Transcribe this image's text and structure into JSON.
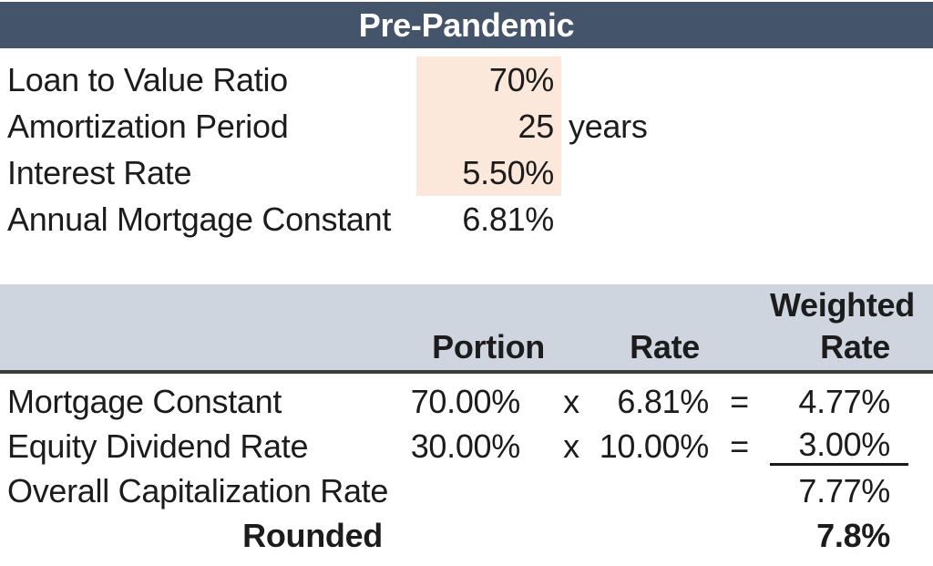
{
  "title": "Pre-Pandemic",
  "colors": {
    "title_bg": "#44546A",
    "title_text": "#FFFFFF",
    "input_highlight_bg": "#FBE8DB",
    "table_header_bg": "#CED5DE",
    "text": "#1C1C1C",
    "header_border": "#3B3B3B"
  },
  "assumptions": {
    "rows": [
      {
        "label": "Loan to Value Ratio",
        "value": "70%",
        "suffix": ""
      },
      {
        "label": "Amortization Period",
        "value": "25",
        "suffix": "years"
      },
      {
        "label": "Interest Rate",
        "value": "5.50%",
        "suffix": ""
      },
      {
        "label": "Annual Mortgage Constant",
        "value": "6.81%",
        "suffix": ""
      }
    ]
  },
  "weighted_table": {
    "col_headers": {
      "portion": "Portion",
      "rate": "Rate",
      "weighted_line1": "Weighted",
      "weighted_line2": "Rate"
    },
    "rows": [
      {
        "label": "Mortgage Constant",
        "portion": "70.00%",
        "multiply_sign": "x",
        "rate": "6.81%",
        "equals_sign": "=",
        "weighted_rate": "4.77%"
      },
      {
        "label": "Equity Dividend Rate",
        "portion": "30.00%",
        "multiply_sign": "x",
        "rate": "10.00%",
        "equals_sign": "=",
        "weighted_rate": "3.00%"
      }
    ],
    "total_row": {
      "label": "Overall Capitalization Rate",
      "value": "7.77%"
    },
    "rounded_row": {
      "label": "Rounded",
      "value": "7.8%"
    }
  }
}
